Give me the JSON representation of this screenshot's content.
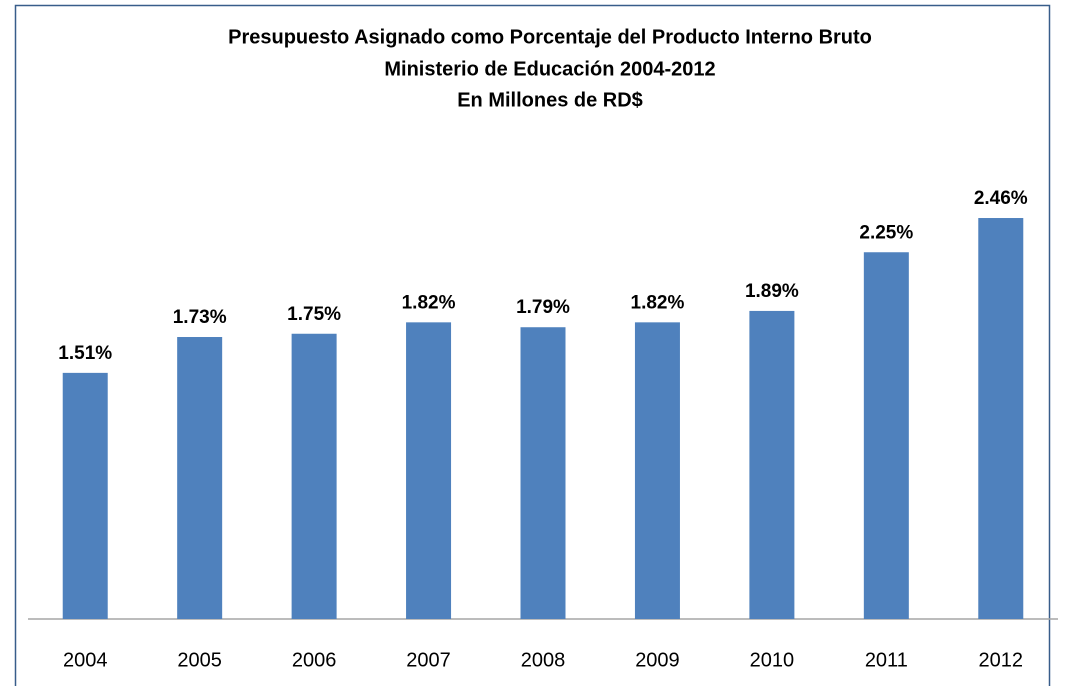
{
  "chart_data": {
    "type": "bar",
    "title": [
      "Presupuesto Asignado como Porcentaje del Producto Interno Bruto",
      "Ministerio de Educación 2004-2012",
      "En Millones de RD$"
    ],
    "categories": [
      "2004",
      "2005",
      "2006",
      "2007",
      "2008",
      "2009",
      "2010",
      "2011",
      "2012"
    ],
    "values": [
      1.51,
      1.73,
      1.75,
      1.82,
      1.79,
      1.82,
      1.89,
      2.25,
      2.46
    ],
    "value_labels": [
      "1.51%",
      "1.73%",
      "1.75%",
      "1.82%",
      "1.79%",
      "1.82%",
      "1.89%",
      "2.25%",
      "2.46%"
    ],
    "color": "#4f81bd",
    "ylim": [
      0,
      3
    ]
  }
}
